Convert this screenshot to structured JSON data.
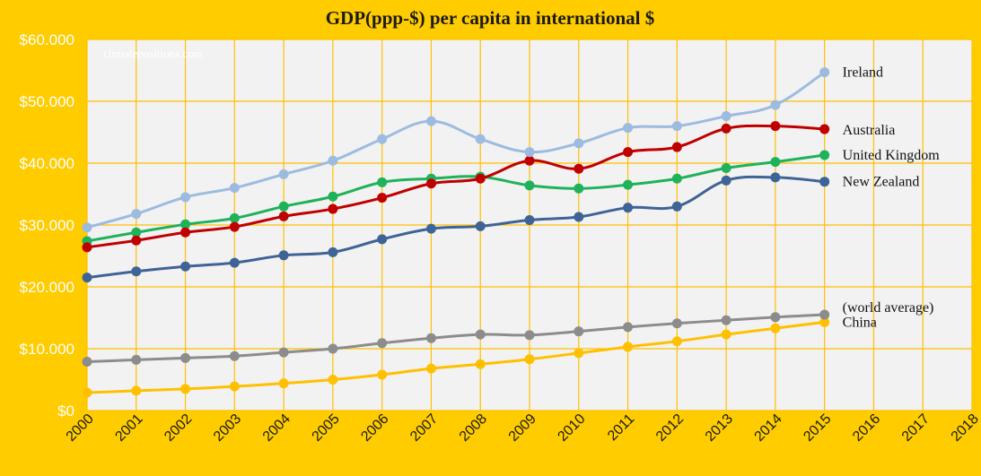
{
  "chart_data": {
    "type": "line",
    "title": "GDP(ppp-$) per capita in international $",
    "watermark": "climatepositions.com",
    "xlabel": "",
    "ylabel": "",
    "x": [
      2000,
      2001,
      2002,
      2003,
      2004,
      2005,
      2006,
      2007,
      2008,
      2009,
      2010,
      2011,
      2012,
      2013,
      2014,
      2015
    ],
    "x_ticks": [
      "2000",
      "2001",
      "2002",
      "2003",
      "2004",
      "2005",
      "2006",
      "2007",
      "2008",
      "2009",
      "2010",
      "2011",
      "2012",
      "2013",
      "2014",
      "2015",
      "2016",
      "2017",
      "2018"
    ],
    "xlim": [
      2000,
      2018
    ],
    "ylim": [
      0,
      60000
    ],
    "y_ticks": [
      "$0",
      "$10.000",
      "$20.000",
      "$30.000",
      "$40.000",
      "$50.000",
      "$60.000"
    ],
    "grid": true,
    "background": "#f2f2f2",
    "frame_color": "#ffcc00",
    "series": [
      {
        "name": "Ireland",
        "color": "#9dbbe0",
        "values": [
          29600,
          31800,
          34500,
          36000,
          38200,
          40400,
          43900,
          46800,
          43900,
          41800,
          43200,
          45700,
          46000,
          47600,
          49400,
          54700
        ]
      },
      {
        "name": "Australia",
        "color": "#c00000",
        "values": [
          26400,
          27500,
          28800,
          29700,
          31400,
          32600,
          34400,
          36700,
          37500,
          40400,
          39100,
          41800,
          42600,
          45600,
          46000,
          45500
        ]
      },
      {
        "name": "United Kingdom",
        "color": "#1fb25a",
        "values": [
          27400,
          28800,
          30100,
          31100,
          33000,
          34600,
          36900,
          37500,
          37800,
          36400,
          35900,
          36500,
          37500,
          39200,
          40200,
          41300
        ]
      },
      {
        "name": "New Zealand",
        "color": "#3e6396",
        "values": [
          21500,
          22500,
          23300,
          23900,
          25100,
          25600,
          27700,
          29400,
          29800,
          30800,
          31300,
          32800,
          33000,
          37200,
          37700,
          37000
        ]
      },
      {
        "name": "(world average)",
        "color": "#8c8c8c",
        "values": [
          7900,
          8200,
          8500,
          8800,
          9400,
          10000,
          10900,
          11700,
          12300,
          12200,
          12800,
          13500,
          14100,
          14600,
          15100,
          15500
        ]
      },
      {
        "name": "China",
        "color": "#ffc000",
        "values": [
          2900,
          3200,
          3500,
          3900,
          4400,
          5000,
          5800,
          6800,
          7500,
          8300,
          9300,
          10300,
          11200,
          12300,
          13300,
          14300
        ]
      }
    ]
  }
}
